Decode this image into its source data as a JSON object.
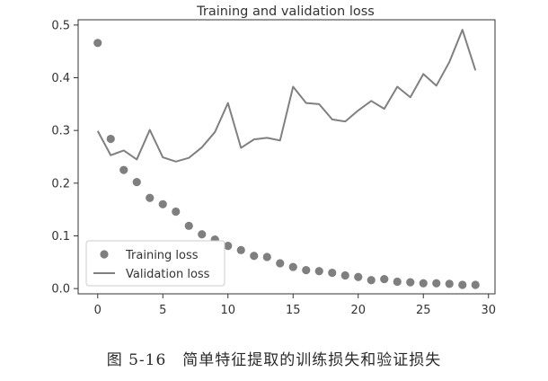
{
  "caption": "图 5-16　简单特征提取的训练损失和验证损失",
  "chart_data": {
    "type": "line",
    "title": "Training and validation loss",
    "xlabel": "",
    "ylabel": "",
    "xlim": [
      -1.5,
      30.5
    ],
    "ylim": [
      -0.01,
      0.51
    ],
    "xticks": [
      0,
      5,
      10,
      15,
      20,
      25,
      30
    ],
    "yticks": [
      0.0,
      0.1,
      0.2,
      0.3,
      0.4,
      0.5
    ],
    "ytick_labels": [
      "0.0",
      "0.1",
      "0.2",
      "0.3",
      "0.4",
      "0.5"
    ],
    "grid": false,
    "legend_position": "lower-left",
    "colors": {
      "training": "#7f7f7f",
      "validation": "#808080",
      "axes": "#333333",
      "text": "#333333"
    },
    "series": [
      {
        "name": "Training loss",
        "style": "points",
        "x": [
          0,
          1,
          2,
          3,
          4,
          5,
          6,
          7,
          8,
          9,
          10,
          11,
          12,
          13,
          14,
          15,
          16,
          17,
          18,
          19,
          20,
          21,
          22,
          23,
          24,
          25,
          26,
          27,
          28,
          29
        ],
        "y": [
          0.466,
          0.284,
          0.225,
          0.202,
          0.172,
          0.16,
          0.146,
          0.119,
          0.103,
          0.093,
          0.081,
          0.073,
          0.062,
          0.06,
          0.048,
          0.041,
          0.035,
          0.033,
          0.03,
          0.025,
          0.022,
          0.016,
          0.018,
          0.013,
          0.012,
          0.01,
          0.01,
          0.009,
          0.007,
          0.007
        ]
      },
      {
        "name": "Validation loss",
        "style": "line",
        "x": [
          0,
          1,
          2,
          3,
          4,
          5,
          6,
          7,
          8,
          9,
          10,
          11,
          12,
          13,
          14,
          15,
          16,
          17,
          18,
          19,
          20,
          21,
          22,
          23,
          24,
          25,
          26,
          27,
          28,
          29
        ],
        "y": [
          0.299,
          0.253,
          0.262,
          0.245,
          0.301,
          0.249,
          0.241,
          0.248,
          0.268,
          0.297,
          0.352,
          0.267,
          0.283,
          0.286,
          0.281,
          0.383,
          0.352,
          0.35,
          0.321,
          0.317,
          0.338,
          0.356,
          0.341,
          0.383,
          0.363,
          0.407,
          0.385,
          0.43,
          0.491,
          0.414
        ]
      }
    ]
  }
}
